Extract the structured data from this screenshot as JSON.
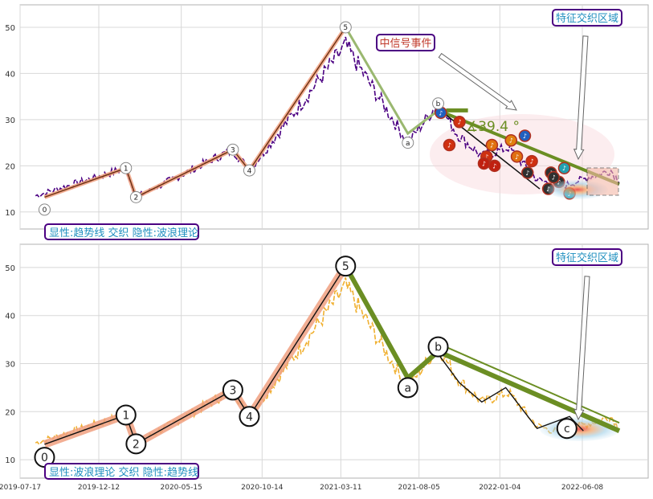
{
  "chart_data": [
    {
      "type": "line",
      "panel": "top",
      "ylim": [
        7,
        54
      ],
      "yticks": [
        10,
        20,
        30,
        40,
        50
      ],
      "grid": true,
      "corner_label": "显性:趋势线 交织 隐性:波浪理论",
      "callouts": [
        {
          "text": "中信号事件",
          "color": "#c0392b"
        },
        {
          "text": "特征交织区域",
          "color": "#1f8fbf"
        }
      ],
      "angle_label": "∡39.4 °",
      "wave_points": [
        {
          "label": "0",
          "x": "2019-09-01",
          "y": 10.5
        },
        {
          "label": "1",
          "x": "2020-02-01",
          "y": 19.5
        },
        {
          "label": "2",
          "x": "2020-02-20",
          "y": 13.2
        },
        {
          "label": "3",
          "x": "2020-08-20",
          "y": 23.5
        },
        {
          "label": "4",
          "x": "2020-09-20",
          "y": 19.0
        },
        {
          "label": "5",
          "x": "2021-03-20",
          "y": 50.0
        },
        {
          "label": "a",
          "x": "2021-07-15",
          "y": 25.0
        },
        {
          "label": "b",
          "x": "2021-09-10",
          "y": 33.5
        }
      ]
    },
    {
      "type": "line",
      "panel": "bottom",
      "ylim": [
        7,
        54
      ],
      "yticks": [
        10,
        20,
        30,
        40,
        50
      ],
      "grid": true,
      "corner_label": "显性:波浪理论 交织 隐性:趋势线",
      "callouts": [
        {
          "text": "特征交织区域",
          "color": "#1f8fbf"
        }
      ],
      "wave_points": [
        {
          "label": "0",
          "x": "2019-09-01",
          "y": 10.5
        },
        {
          "label": "1",
          "x": "2020-02-01",
          "y": 19.3
        },
        {
          "label": "2",
          "x": "2020-02-20",
          "y": 13.3
        },
        {
          "label": "3",
          "x": "2020-08-20",
          "y": 24.5
        },
        {
          "label": "4",
          "x": "2020-09-20",
          "y": 19.0
        },
        {
          "label": "5",
          "x": "2021-03-20",
          "y": 50.3
        },
        {
          "label": "a",
          "x": "2021-07-15",
          "y": 25.0
        },
        {
          "label": "b",
          "x": "2021-09-10",
          "y": 33.5
        },
        {
          "label": "c",
          "x": "2022-05-10",
          "y": 16.5
        }
      ],
      "xtick_labels": [
        "2019-07-17",
        "2019-12-12",
        "2020-05-15",
        "2020-10-14",
        "2021-03-11",
        "2021-08-05",
        "2022-01-04",
        "2022-06-08"
      ]
    }
  ],
  "colors": {
    "price_top": "#4b0082",
    "price_bottom": "#f0b030",
    "trend_green": "#6b8e23",
    "wave_band": "#f0a080",
    "label_border": "#4b0082"
  }
}
